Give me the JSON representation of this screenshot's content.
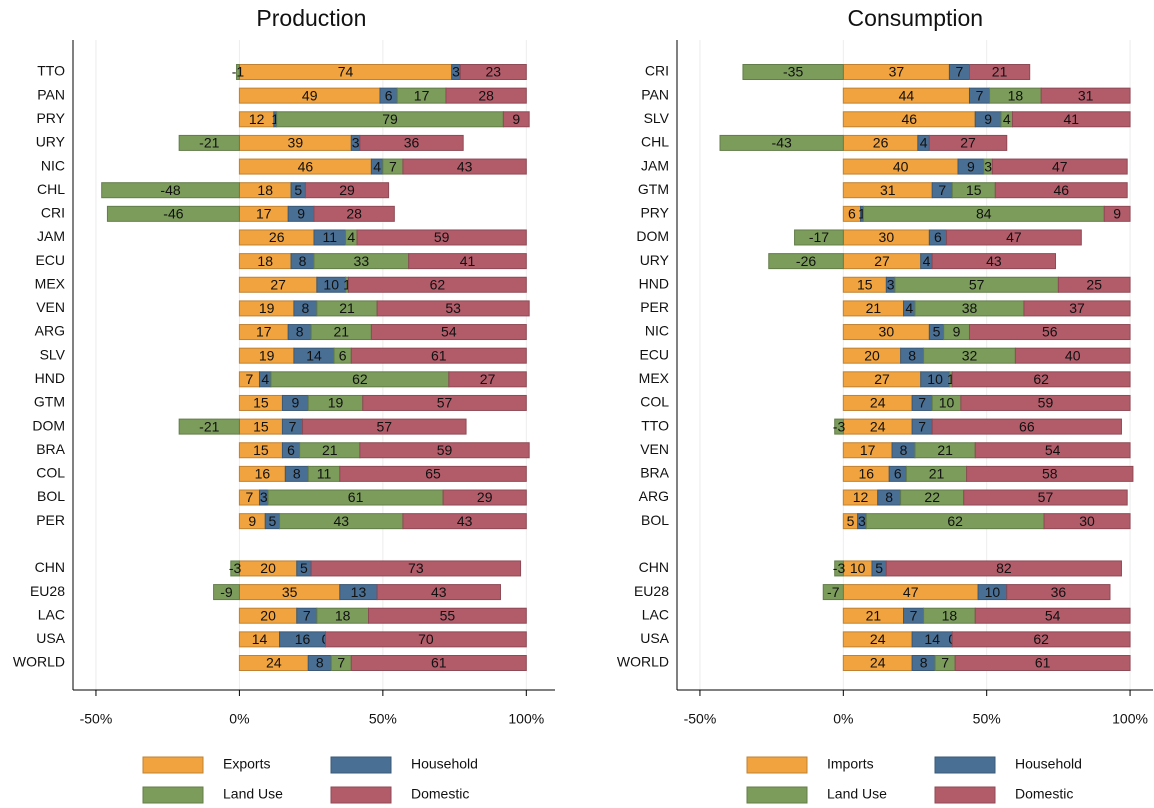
{
  "chart_data": [
    {
      "type": "stacked-bar-horizontal",
      "title": "Production",
      "categories": [
        "TTO",
        "PAN",
        "PRY",
        "URY",
        "NIC",
        "CHL",
        "CRI",
        "JAM",
        "ECU",
        "MEX",
        "VEN",
        "ARG",
        "SLV",
        "HND",
        "GTM",
        "DOM",
        "BRA",
        "COL",
        "BOL",
        "PER",
        null,
        "CHN",
        "EU28",
        "LAC",
        "USA",
        "WORLD"
      ],
      "series": [
        {
          "name": "Exports",
          "color": "#f0a33e",
          "values": [
            74,
            49,
            12,
            39,
            46,
            18,
            17,
            26,
            18,
            27,
            19,
            17,
            19,
            7,
            15,
            15,
            15,
            16,
            7,
            9,
            null,
            20,
            35,
            20,
            14,
            24
          ]
        },
        {
          "name": "Household",
          "color": "#4a6f94",
          "values": [
            3,
            6,
            1,
            3,
            4,
            5,
            9,
            11,
            8,
            10,
            8,
            8,
            14,
            4,
            9,
            7,
            6,
            8,
            3,
            5,
            null,
            5,
            13,
            7,
            16,
            8
          ]
        },
        {
          "name": "Land Use",
          "color": "#7c9c5c",
          "values": [
            -1,
            17,
            79,
            -21,
            7,
            -48,
            -46,
            4,
            33,
            1,
            21,
            21,
            6,
            62,
            19,
            -21,
            21,
            11,
            61,
            43,
            null,
            -3,
            -9,
            18,
            0,
            7
          ]
        },
        {
          "name": "Domestic",
          "color": "#b25c6a",
          "values": [
            23,
            28,
            9,
            36,
            43,
            29,
            28,
            59,
            41,
            62,
            53,
            54,
            61,
            27,
            57,
            57,
            59,
            65,
            29,
            43,
            null,
            73,
            43,
            55,
            70,
            61
          ]
        }
      ],
      "xlim": [
        -58,
        110
      ],
      "xticks": [
        {
          "value": -50,
          "label": "-50%"
        },
        {
          "value": 0,
          "label": "0%"
        },
        {
          "value": 50,
          "label": "50%"
        },
        {
          "value": 100,
          "label": "100%"
        }
      ],
      "grid": true
    },
    {
      "type": "stacked-bar-horizontal",
      "title": "Consumption",
      "categories": [
        "CRI",
        "PAN",
        "SLV",
        "CHL",
        "JAM",
        "GTM",
        "PRY",
        "DOM",
        "URY",
        "HND",
        "PER",
        "NIC",
        "ECU",
        "MEX",
        "COL",
        "TTO",
        "VEN",
        "BRA",
        "ARG",
        "BOL",
        null,
        "CHN",
        "EU28",
        "LAC",
        "USA",
        "WORLD"
      ],
      "series": [
        {
          "name": "Imports",
          "color": "#f0a33e",
          "values": [
            37,
            44,
            46,
            26,
            40,
            31,
            6,
            30,
            27,
            15,
            21,
            30,
            20,
            27,
            24,
            24,
            17,
            16,
            12,
            5,
            null,
            10,
            47,
            21,
            24,
            24
          ]
        },
        {
          "name": "Household",
          "color": "#4a6f94",
          "values": [
            7,
            7,
            9,
            4,
            9,
            7,
            1,
            6,
            4,
            3,
            4,
            5,
            8,
            10,
            7,
            7,
            8,
            6,
            8,
            3,
            null,
            5,
            10,
            7,
            14,
            8
          ]
        },
        {
          "name": "Land Use",
          "color": "#7c9c5c",
          "values": [
            -35,
            18,
            4,
            -43,
            3,
            15,
            84,
            -17,
            -26,
            57,
            38,
            9,
            32,
            1,
            10,
            -3,
            21,
            21,
            22,
            62,
            null,
            -3,
            -7,
            18,
            0,
            7
          ]
        },
        {
          "name": "Domestic",
          "color": "#b25c6a",
          "values": [
            21,
            31,
            41,
            27,
            47,
            46,
            9,
            47,
            43,
            25,
            37,
            56,
            40,
            62,
            59,
            66,
            54,
            58,
            57,
            30,
            null,
            82,
            36,
            54,
            62,
            61
          ]
        }
      ],
      "xlim": [
        -58,
        108
      ],
      "xticks": [
        {
          "value": -50,
          "label": "-50%"
        },
        {
          "value": 0,
          "label": "0%"
        },
        {
          "value": 50,
          "label": "50%"
        },
        {
          "value": 100,
          "label": "100%"
        }
      ],
      "grid": true
    }
  ]
}
